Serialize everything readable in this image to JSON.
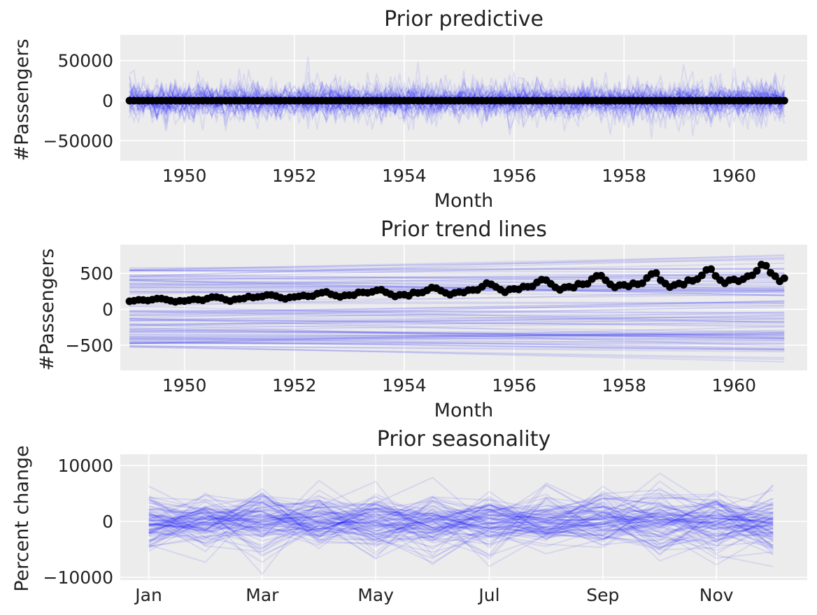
{
  "colors": {
    "background": "#ececec",
    "grid": "#ffffff",
    "draws": "#0000ff",
    "observed": "#000000"
  },
  "chart_data": [
    {
      "type": "line",
      "title": "Prior predictive",
      "xlabel": "Month",
      "ylabel": "#Passengers",
      "x_ticks": [
        "1950",
        "1952",
        "1954",
        "1956",
        "1958",
        "1960"
      ],
      "y_ticks": [
        "50000",
        "0",
        "−50000"
      ],
      "xlim": [
        "1948-11",
        "1961-05"
      ],
      "ylim": [
        -75000,
        82000
      ],
      "grid": true,
      "series": [
        {
          "kind": "prior draws",
          "count": 50,
          "sd": 15000,
          "x_start": "1949-01",
          "x_end": "1960-12",
          "frequency": "monthly"
        },
        {
          "kind": "observed",
          "values": []
        }
      ]
    },
    {
      "type": "line",
      "title": "Prior trend lines",
      "xlabel": "Month",
      "ylabel": "#Passengers",
      "x_ticks": [
        "1950",
        "1952",
        "1954",
        "1956",
        "1958",
        "1960"
      ],
      "y_ticks": [
        "500",
        "0",
        "−500"
      ],
      "xlim": [
        "1948-11",
        "1961-05"
      ],
      "ylim": [
        -850,
        900
      ],
      "grid": true,
      "series": [
        {
          "kind": "prior trend draws",
          "count": 100,
          "start_range": [
            -530,
            600
          ],
          "end_range": [
            -770,
            820
          ]
        },
        {
          "kind": "observed",
          "x_start": "1949-01",
          "x_end": "1960-12",
          "frequency": "monthly",
          "values": [
            112,
            118,
            132,
            129,
            121,
            135,
            148,
            148,
            136,
            119,
            104,
            118,
            115,
            126,
            141,
            135,
            125,
            149,
            170,
            170,
            158,
            133,
            114,
            140,
            145,
            150,
            178,
            163,
            172,
            178,
            199,
            199,
            184,
            162,
            146,
            166,
            171,
            180,
            193,
            181,
            183,
            218,
            230,
            242,
            209,
            191,
            172,
            194,
            196,
            196,
            236,
            235,
            229,
            243,
            264,
            272,
            237,
            211,
            180,
            201,
            204,
            188,
            235,
            227,
            234,
            264,
            302,
            293,
            259,
            229,
            203,
            229,
            242,
            233,
            267,
            269,
            270,
            315,
            364,
            347,
            312,
            274,
            237,
            278,
            284,
            277,
            317,
            313,
            318,
            374,
            413,
            405,
            355,
            306,
            271,
            306,
            315,
            301,
            356,
            348,
            355,
            422,
            465,
            467,
            404,
            347,
            305,
            336,
            340,
            318,
            362,
            348,
            363,
            435,
            491,
            505,
            404,
            359,
            310,
            337,
            360,
            342,
            406,
            396,
            420,
            472,
            548,
            559,
            463,
            407,
            362,
            405,
            417,
            391,
            419,
            461,
            472,
            535,
            622,
            606,
            508,
            461,
            390,
            432
          ]
        }
      ]
    },
    {
      "type": "line",
      "title": "Prior seasonality",
      "xlabel": "",
      "ylabel": "Percent change",
      "x_ticks": [
        "Jan",
        "Mar",
        "May",
        "Jul",
        "Sep",
        "Nov"
      ],
      "y_ticks": [
        "10000",
        "0",
        "−10000"
      ],
      "xlim": [
        -0.5,
        11.6
      ],
      "ylim": [
        -10500,
        12000
      ],
      "grid": true,
      "series": [
        {
          "kind": "prior seasonality draws",
          "count": 100,
          "sd": 3500,
          "x": [
            "Jan",
            "Feb",
            "Mar",
            "Apr",
            "May",
            "Jun",
            "Jul",
            "Aug",
            "Sep",
            "Oct",
            "Nov",
            "Dec"
          ]
        }
      ]
    }
  ]
}
